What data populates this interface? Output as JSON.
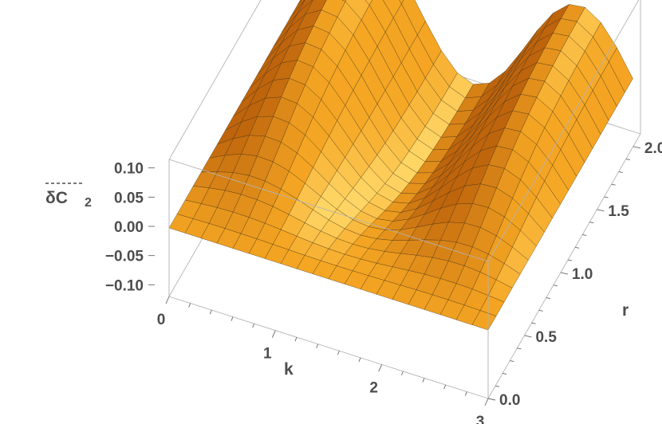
{
  "chart_data": {
    "type": "surface3d",
    "title": "",
    "xlabel": "k",
    "ylabel": "r",
    "zlabel": "δC",
    "zlabel_subscript": "2",
    "xlim": [
      0,
      3
    ],
    "ylim": [
      0,
      2.1
    ],
    "zlim": [
      -0.12,
      0.12
    ],
    "xticks": [
      "0",
      "1",
      "2",
      "3"
    ],
    "yticks": [
      "0.0",
      "0.5",
      "1.0",
      "1.5",
      "2.0"
    ],
    "zticks": [
      "0.10",
      "0.05",
      "0.00",
      "−0.05",
      "−0.10"
    ],
    "surface": {
      "description_formula": "z = 0.1 * sin(pi*k) * (1 - exp(-r^2))",
      "amplitude": 0.1,
      "mesh": {
        "k_lines": 20,
        "r_lines": 18
      },
      "sample_points": [
        {
          "k": 0.0,
          "r": 2.0,
          "z": 0.0
        },
        {
          "k": 0.5,
          "r": 2.0,
          "z": 0.098
        },
        {
          "k": 1.0,
          "r": 2.0,
          "z": 0.0
        },
        {
          "k": 1.5,
          "r": 2.0,
          "z": -0.098
        },
        {
          "k": 2.0,
          "r": 2.0,
          "z": 0.0
        },
        {
          "k": 2.5,
          "r": 2.0,
          "z": 0.098
        },
        {
          "k": 3.0,
          "r": 2.0,
          "z": 0.0
        },
        {
          "k": 0.5,
          "r": 0.0,
          "z": 0.0
        },
        {
          "k": 1.5,
          "r": 0.0,
          "z": 0.0
        }
      ]
    },
    "colors": {
      "surface_base": "#f5a623",
      "surface_highlight": "#ffd060",
      "surface_shadow": "#c0640a",
      "mesh": "#3a2a10",
      "box": "#b3b3b3",
      "text": "#4d4d4d"
    }
  }
}
